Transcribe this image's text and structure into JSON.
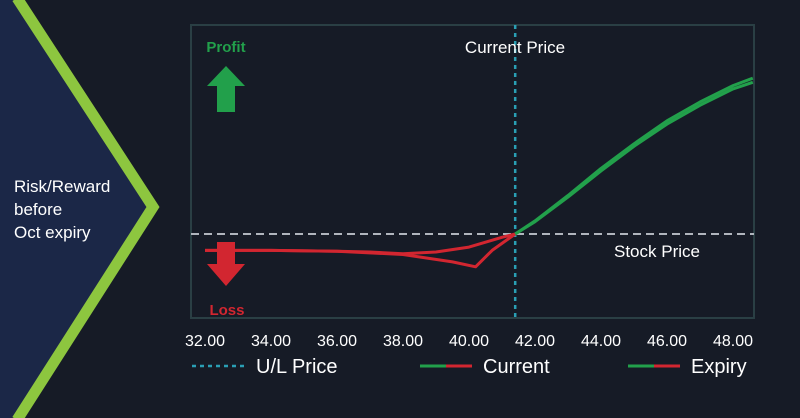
{
  "side_label": {
    "line1": "Risk/Reward",
    "line2": "before",
    "line3": "Oct expiry"
  },
  "annotations": {
    "profit": "Profit",
    "loss": "Loss",
    "current_price": "Current Price",
    "stock_price": "Stock Price"
  },
  "colors": {
    "background": "#161b26",
    "side_panel": "#1b2747",
    "chevron": "#8dc63f",
    "profit": "#22a04b",
    "loss": "#d22630",
    "current_price_line": "#2a9fb4",
    "zero_line": "#b0b5bd",
    "axis_text": "#ffffff"
  },
  "chart_data": {
    "type": "line",
    "xlabel": "",
    "ylabel": "",
    "x_ticks": [
      "32.00",
      "34.00",
      "36.00",
      "38.00",
      "40.00",
      "42.00",
      "44.00",
      "46.00",
      "48.00"
    ],
    "xlim": [
      32.0,
      48.6
    ],
    "ylim": [
      -0.6,
      2.2
    ],
    "current_price": 41.4,
    "series": [
      {
        "name": "Current",
        "points": [
          [
            32.0,
            -0.2
          ],
          [
            34.0,
            -0.2
          ],
          [
            36.0,
            -0.21
          ],
          [
            37.0,
            -0.22
          ],
          [
            38.0,
            -0.24
          ],
          [
            39.0,
            -0.22
          ],
          [
            40.0,
            -0.16
          ],
          [
            40.5,
            -0.1
          ],
          [
            41.0,
            -0.04
          ],
          [
            41.4,
            0.0
          ],
          [
            42.0,
            0.15
          ],
          [
            43.0,
            0.45
          ],
          [
            44.0,
            0.77
          ],
          [
            45.0,
            1.07
          ],
          [
            46.0,
            1.34
          ],
          [
            47.0,
            1.57
          ],
          [
            48.0,
            1.77
          ],
          [
            48.6,
            1.85
          ]
        ]
      },
      {
        "name": "Expiry",
        "points": [
          [
            32.0,
            -0.2
          ],
          [
            34.0,
            -0.2
          ],
          [
            36.0,
            -0.21
          ],
          [
            38.0,
            -0.25
          ],
          [
            39.5,
            -0.34
          ],
          [
            40.2,
            -0.4
          ],
          [
            40.7,
            -0.2
          ],
          [
            41.4,
            0.0
          ],
          [
            42.0,
            0.16
          ],
          [
            43.0,
            0.47
          ],
          [
            44.0,
            0.8
          ],
          [
            45.0,
            1.1
          ],
          [
            46.0,
            1.38
          ],
          [
            47.0,
            1.61
          ],
          [
            48.0,
            1.81
          ],
          [
            48.6,
            1.9
          ]
        ]
      }
    ],
    "legend": [
      {
        "label": "U/L Price",
        "style": "dotted"
      },
      {
        "label": "Current",
        "style": "solid"
      },
      {
        "label": "Expiry",
        "style": "solid"
      }
    ],
    "legend_position": "bottom",
    "grid": false
  }
}
